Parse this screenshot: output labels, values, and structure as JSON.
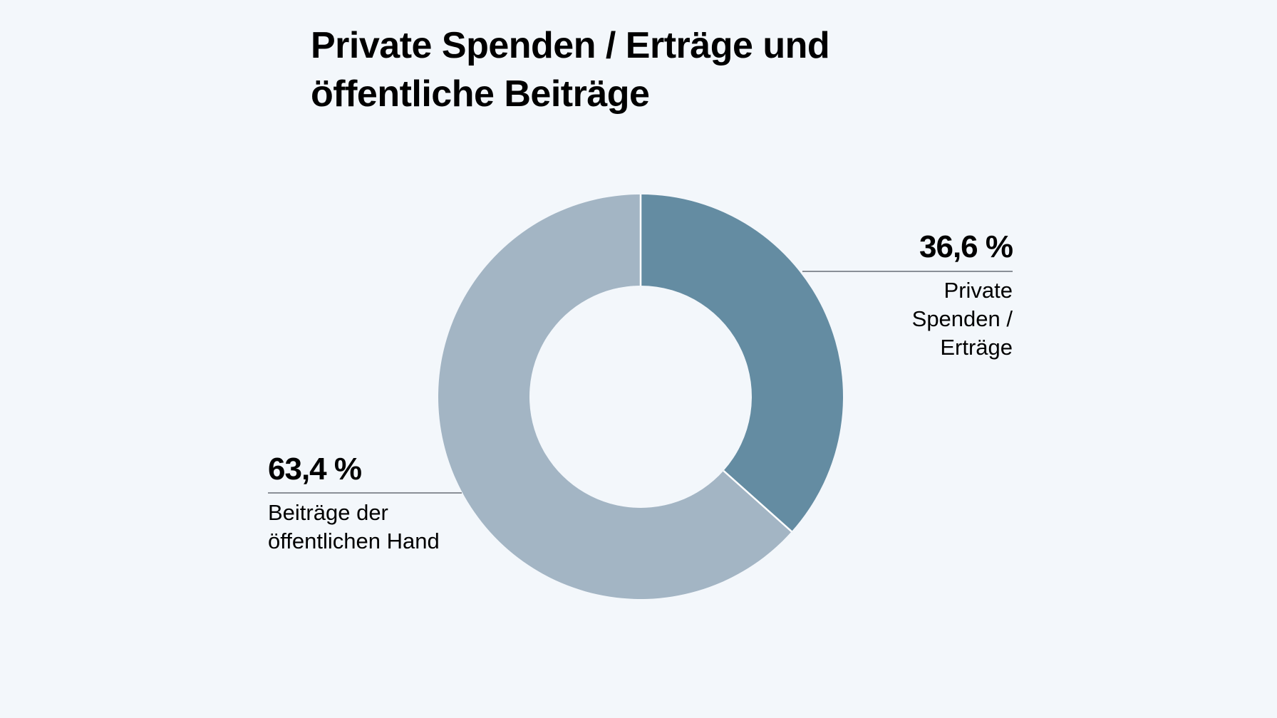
{
  "title_lines": [
    "Private Spenden / Erträge und",
    "öffentliche Beiträge"
  ],
  "colors": {
    "background": "#f3f7fb",
    "slice_private": "#648ca2",
    "slice_public": "#a3b5c4",
    "leader_line": "#8a9097",
    "slice_separator": "#ffffff"
  },
  "chart_data": {
    "type": "pie",
    "variant": "donut",
    "title": "Private Spenden / Erträge und öffentliche Beiträge",
    "slices": [
      {
        "value": 36.6,
        "value_label": "36,6 %",
        "label_lines": [
          "Private",
          "Spenden /",
          "Erträge"
        ],
        "color": "#648ca2"
      },
      {
        "value": 63.4,
        "value_label": "63,4 %",
        "label_lines": [
          "Beiträge der",
          "öffentlichen Hand"
        ],
        "color": "#a3b5c4"
      }
    ]
  }
}
